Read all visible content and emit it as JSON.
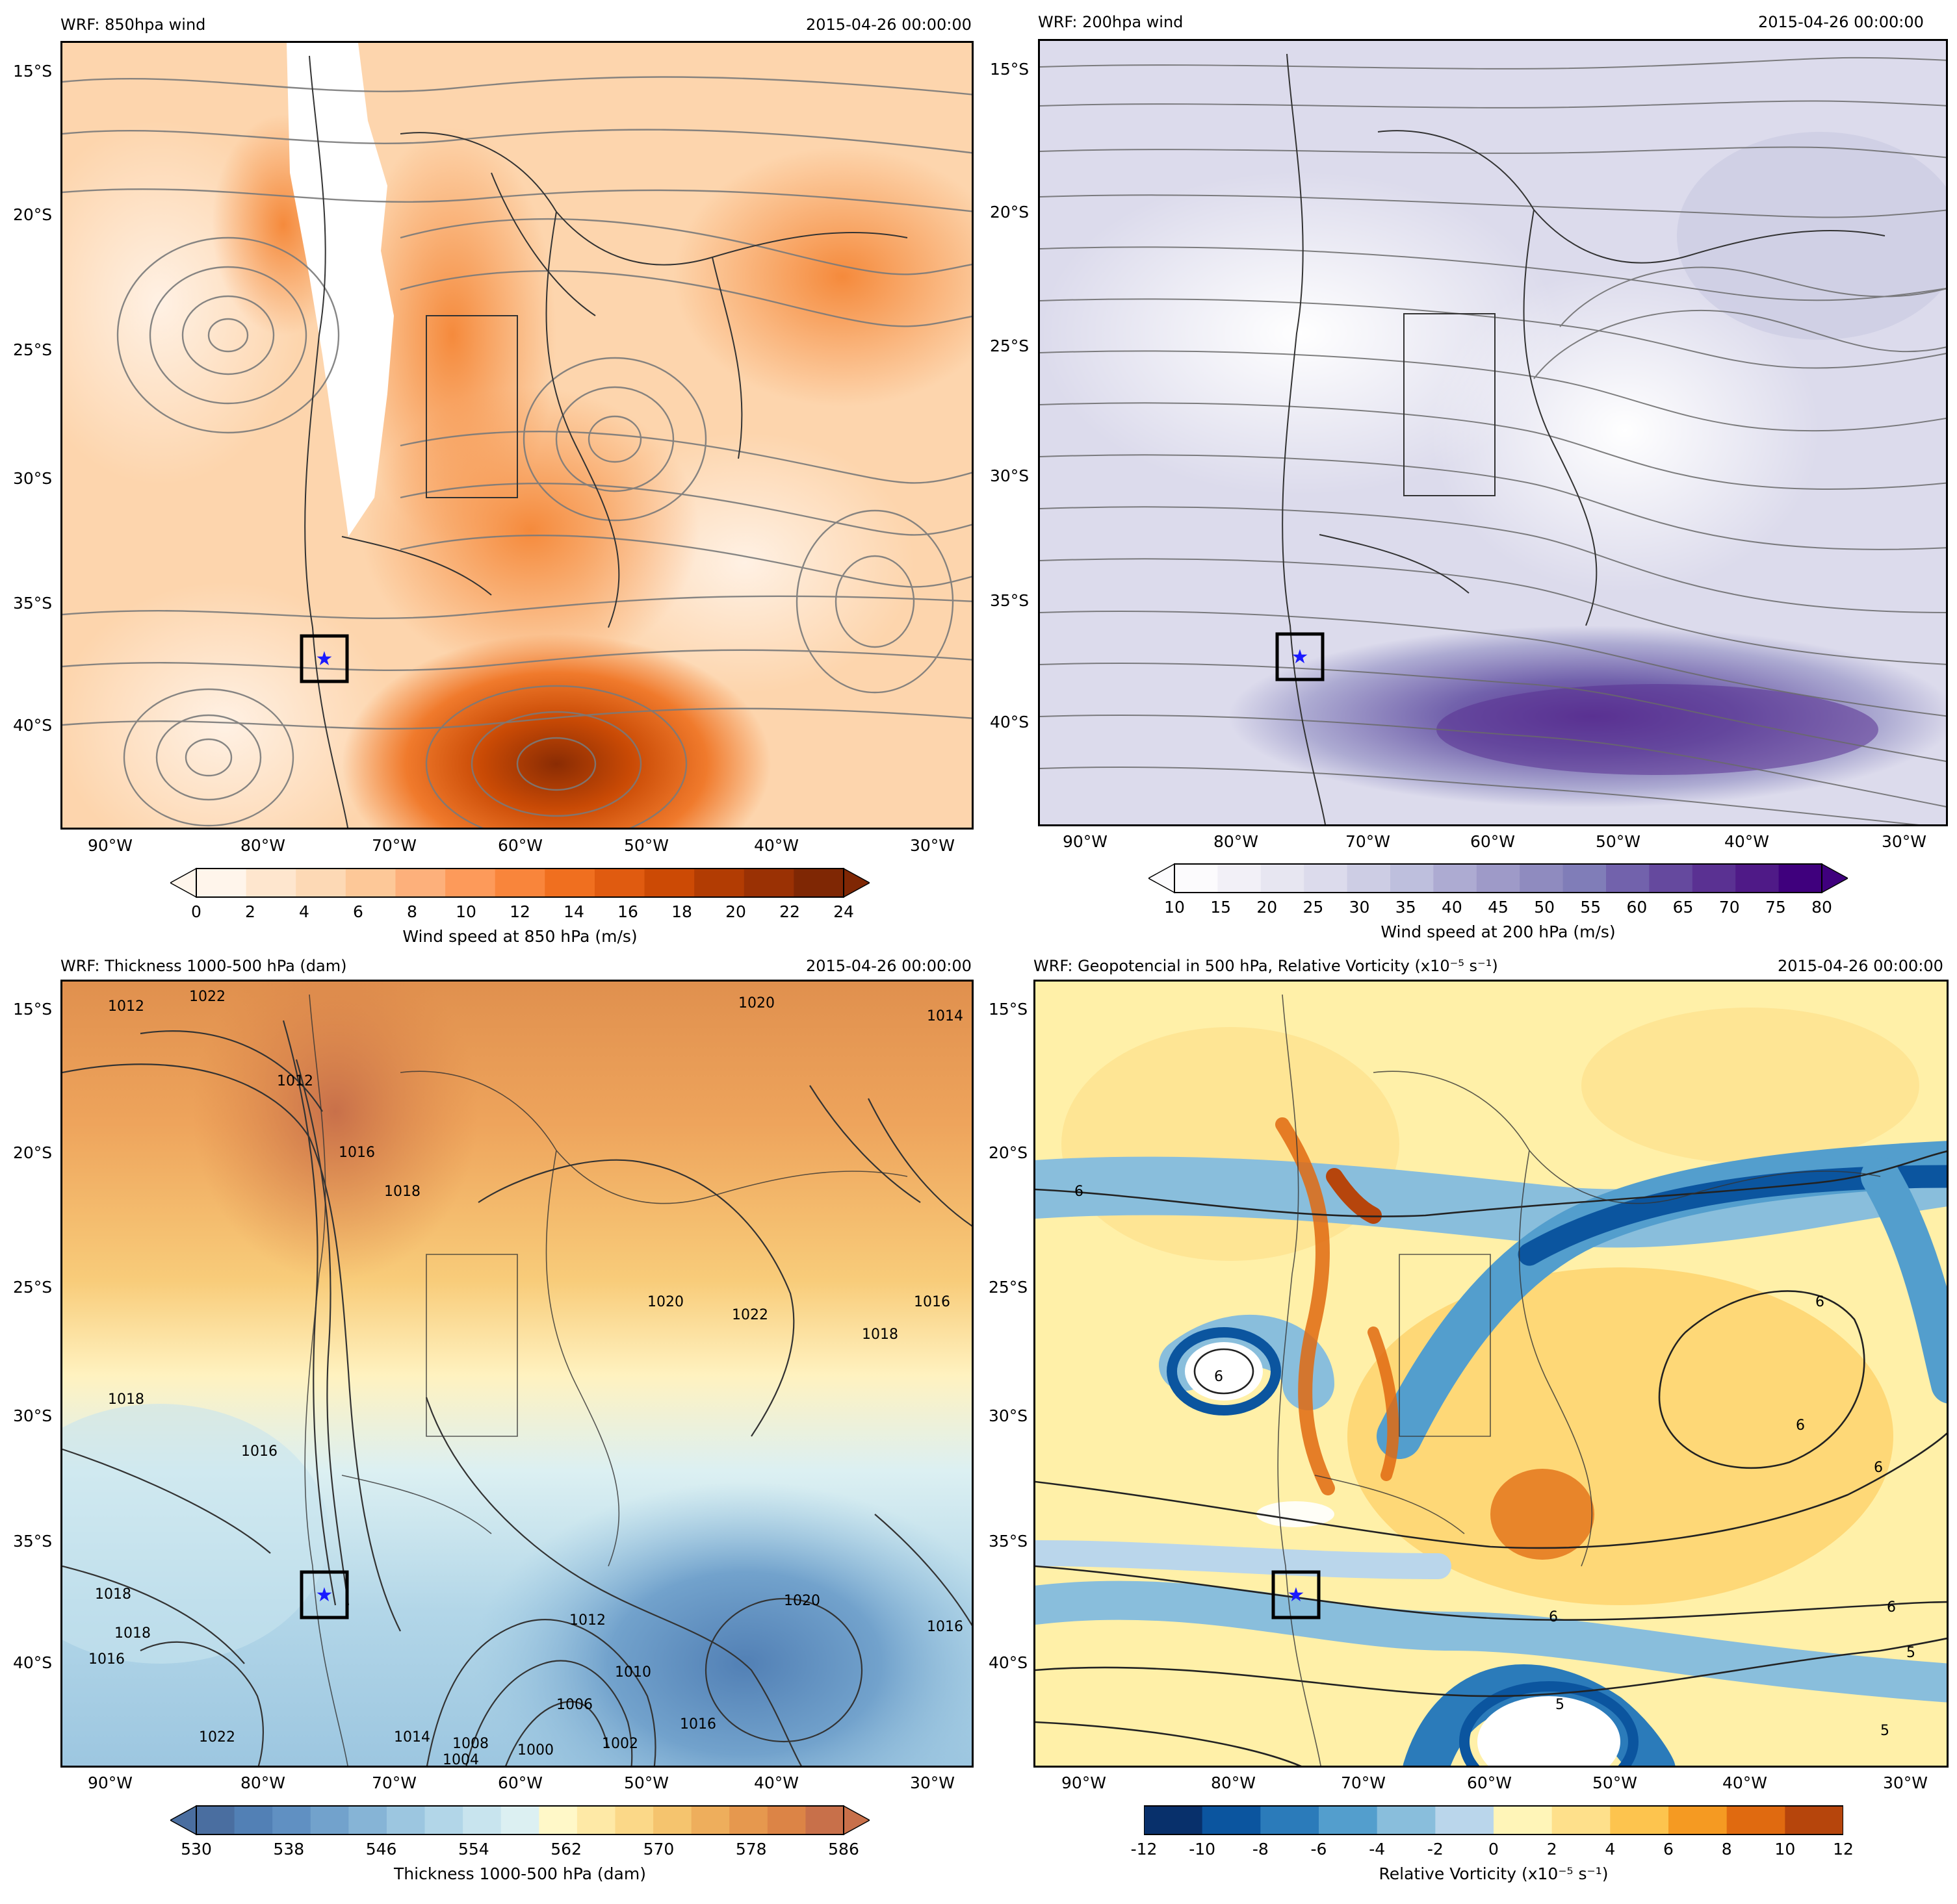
{
  "panels": [
    {
      "title": "WRF: 850hpa wind",
      "datetime": "2015-04-26 00:00:00",
      "lat_ticks": [
        "15°S",
        "20°S",
        "25°S",
        "30°S",
        "35°S",
        "40°S"
      ],
      "lon_ticks": [
        "90°W",
        "80°W",
        "70°W",
        "60°W",
        "50°W",
        "40°W",
        "30°W"
      ],
      "colorbar": {
        "label": "Wind speed at 850 hPa (m/s)",
        "ticks": [
          "0",
          "2",
          "4",
          "6",
          "8",
          "10",
          "12",
          "14",
          "16",
          "18",
          "20",
          "22",
          "24"
        ],
        "colors": [
          "#fff5eb",
          "#fee6ce",
          "#fdd9b5",
          "#fdc898",
          "#fdb07b",
          "#fd9a5a",
          "#f9853b",
          "#f06f1f",
          "#e05b10",
          "#cc4a05",
          "#b23c03",
          "#9a3104",
          "#7f2704"
        ],
        "palette": "orange"
      },
      "field": "streamlines"
    },
    {
      "title": "WRF: 200hpa wind",
      "datetime": "2015-04-26 00:00:00",
      "lat_ticks": [
        "15°S",
        "20°S",
        "25°S",
        "30°S",
        "35°S",
        "40°S"
      ],
      "lon_ticks": [
        "90°W",
        "80°W",
        "70°W",
        "60°W",
        "50°W",
        "40°W",
        "30°W"
      ],
      "colorbar": {
        "label": "Wind speed at 200 hPa (m/s)",
        "ticks": [
          "10",
          "15",
          "20",
          "25",
          "30",
          "35",
          "40",
          "45",
          "50",
          "55",
          "60",
          "65",
          "70",
          "75",
          "80"
        ],
        "colors": [
          "#fcfbfd",
          "#f2f0f7",
          "#e7e6f1",
          "#dcdbec",
          "#cdcde4",
          "#bebfdd",
          "#adabd2",
          "#9e9ac8",
          "#8f8bbf",
          "#807db8",
          "#7262ac",
          "#65499e",
          "#5a3192",
          "#4f1a87",
          "#3f007d"
        ],
        "palette": "purple"
      },
      "field": "streamlines"
    },
    {
      "title": "WRF: Thickness 1000-500 hPa (dam)",
      "datetime": "2015-04-26 00:00:00",
      "lat_ticks": [
        "15°S",
        "20°S",
        "25°S",
        "30°S",
        "35°S",
        "40°S"
      ],
      "lon_ticks": [
        "90°W",
        "80°W",
        "70°W",
        "60°W",
        "50°W",
        "40°W",
        "30°W"
      ],
      "colorbar": {
        "label": "Thickness 1000-500 hPa (dam)",
        "ticks": [
          "530",
          "538",
          "546",
          "554",
          "562",
          "570",
          "578",
          "586"
        ],
        "colors": [
          "#4a6ea0",
          "#5280b5",
          "#6090c2",
          "#72a2cc",
          "#86b4d6",
          "#9cc6e0",
          "#b2d6e8",
          "#c8e4ee",
          "#dcf0f2",
          "#fff8c8",
          "#fee9a6",
          "#fbd888",
          "#f5c46e",
          "#eeae5c",
          "#e6984e",
          "#dc8446",
          "#c8704a"
        ],
        "palette": "bluered"
      },
      "contour_labels": [
        "1012",
        "1022",
        "1014",
        "1020",
        "1016",
        "1018",
        "1012",
        "1018",
        "1016",
        "1020",
        "1022",
        "1018",
        "1016",
        "1018",
        "1016",
        "1018",
        "1016",
        "1020",
        "1012",
        "1010",
        "1006",
        "1002",
        "1000",
        "1008",
        "1014",
        "1022",
        "1016",
        "1004"
      ],
      "field": "thickness"
    },
    {
      "title": "WRF: Geopotencial in 500 hPa, Relative Vorticity (x10⁻⁵ s⁻¹)",
      "datetime": "2015-04-26 00:00:00",
      "lat_ticks": [
        "15°S",
        "20°S",
        "25°S",
        "30°S",
        "35°S",
        "40°S"
      ],
      "lon_ticks": [
        "90°W",
        "80°W",
        "70°W",
        "60°W",
        "50°W",
        "40°W",
        "30°W"
      ],
      "colorbar": {
        "label": "Relative Vorticity (x10⁻⁵ s⁻¹)",
        "ticks": [
          "-12",
          "-10",
          "-8",
          "-6",
          "-4",
          "-2",
          "0",
          "2",
          "4",
          "6",
          "8",
          "10",
          "12"
        ],
        "colors": [
          "#08306b",
          "#0b559f",
          "#2b7bba",
          "#539ecd",
          "#89bedc",
          "#bad6eb",
          "#fff5b8",
          "#fee08b",
          "#fdc44e",
          "#f59a22",
          "#e06a10",
          "#b6450c"
        ],
        "palette": "vort"
      },
      "contour_labels": [
        "6",
        "6",
        "6",
        "6",
        "6",
        "6",
        "6",
        "5",
        "5",
        "5"
      ],
      "field": "vorticity"
    }
  ]
}
